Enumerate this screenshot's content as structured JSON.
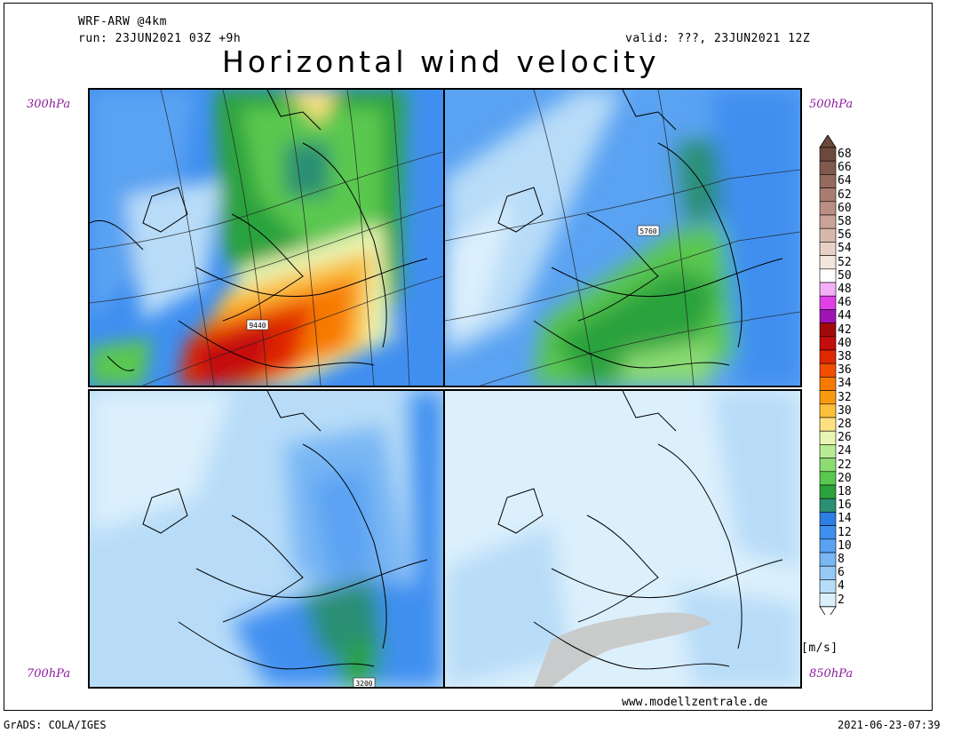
{
  "header": {
    "model": "WRF-ARW @4km",
    "run": "run: 23JUN2021 03Z +9h",
    "valid": "valid: ???, 23JUN2021 12Z",
    "title": "Horizontal wind velocity"
  },
  "panels": [
    {
      "level": "300hPa",
      "contour_label": "9440"
    },
    {
      "level": "500hPa",
      "contour_label": "5760"
    },
    {
      "level": "700hPa",
      "contour_label": "3200"
    },
    {
      "level": "850hPa",
      "contour_label": ""
    }
  ],
  "colorbar": {
    "unit": "[m/s]",
    "labels": [
      "68",
      "66",
      "64",
      "62",
      "60",
      "58",
      "56",
      "54",
      "52",
      "50",
      "48",
      "46",
      "44",
      "42",
      "40",
      "38",
      "36",
      "34",
      "32",
      "30",
      "28",
      "26",
      "24",
      "22",
      "20",
      "18",
      "16",
      "14",
      "12",
      "10",
      "8",
      "6",
      "4",
      "2"
    ],
    "colors": [
      "#6b4a3c",
      "#7f5a4c",
      "#946b5e",
      "#a87d70",
      "#ba8f83",
      "#c9a397",
      "#d8b8ad",
      "#e8d0c6",
      "#f4e6df",
      "#fefefe",
      "#f4b0f6",
      "#e040e8",
      "#a014b4",
      "#a30b0b",
      "#c40d0d",
      "#e02800",
      "#f24e00",
      "#f77a00",
      "#f89a10",
      "#fbbf3c",
      "#fde181",
      "#e8f5b4",
      "#b7eb92",
      "#8cdc72",
      "#5ac84f",
      "#2ca23c",
      "#2b8f73",
      "#2c7fe0",
      "#3f8ff0",
      "#5aa2f2",
      "#78b6f4",
      "#96c9f5",
      "#b8dcf8",
      "#dcf0fc"
    ]
  },
  "footer": {
    "credit": "www.modellzentrale.de",
    "grads": "GrADS: COLA/IGES",
    "timestamp": "2021-06-23-07:39"
  }
}
